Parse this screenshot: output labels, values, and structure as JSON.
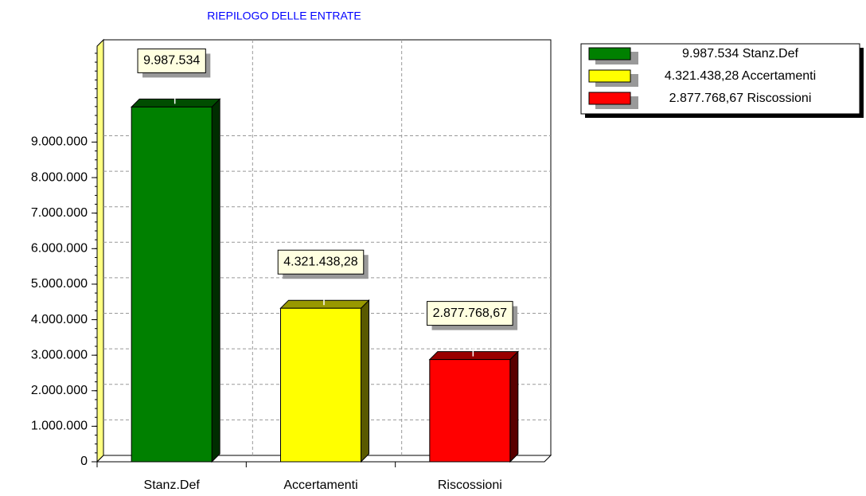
{
  "chart_data": {
    "type": "bar3d",
    "title": "RIEPILOGO DELLE ENTRATE",
    "categories": [
      "Stanz.Def",
      "Accertamenti",
      "Riscossioni"
    ],
    "values": [
      9987534,
      4321438.28,
      2877768.67
    ],
    "value_labels": [
      "9.987.534",
      "4.321.438,28",
      "2.877.768,67"
    ],
    "colors": [
      "#008000",
      "#ffff00",
      "#ff0000"
    ],
    "ylim": [
      0,
      11700000
    ],
    "yticks": [
      0,
      {
        "value": 1000000,
        "label": "1.000.000"
      },
      {
        "value": 2000000,
        "label": "2.000.000"
      },
      {
        "value": 3000000,
        "label": "3.000.000"
      },
      {
        "value": 4000000,
        "label": "4.000.000"
      },
      {
        "value": 5000000,
        "label": "5.000.000"
      },
      {
        "value": 6000000,
        "label": "6.000.000"
      },
      {
        "value": 7000000,
        "label": "7.000.000"
      },
      {
        "value": 8000000,
        "label": "8.000.000"
      },
      {
        "value": 9000000,
        "label": "9.000.000"
      }
    ],
    "grid": true,
    "legend": "top-right"
  }
}
